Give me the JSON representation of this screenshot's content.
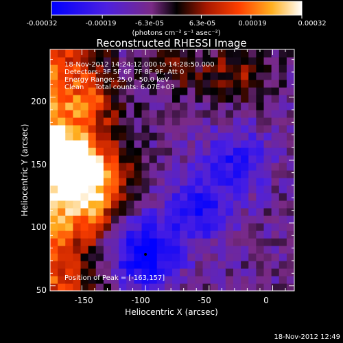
{
  "colorbar": {
    "tick_labels": [
      "-0.00032",
      "-0.00019",
      "-6.3e-05",
      "6.3e-05",
      "0.00019",
      "0.00032"
    ],
    "tick_values": [
      -0.00032,
      -0.00019,
      -6.3e-05,
      6.3e-05,
      0.00019,
      0.00032
    ],
    "range": [
      -0.00032,
      0.00032
    ],
    "unit_label": "(photons cm⁻² s⁻¹ asec⁻²)",
    "colors": [
      "#0000ff",
      "#5a1fd6",
      "#8a2a7a",
      "#000000",
      "#9c1800",
      "#ff3000",
      "#ff9000",
      "#ffe060",
      "#ffffff"
    ]
  },
  "chart_data": {
    "type": "heatmap",
    "title": "Reconstructed RHESSI Image",
    "xlabel": "Heliocentric X (arcsec)",
    "ylabel": "Heliocentric Y (arcsec)",
    "xlim": [
      -175,
      17
    ],
    "ylim": [
      46,
      238
    ],
    "xticks": [
      -150,
      -100,
      -50,
      0
    ],
    "yticks": [
      50,
      100,
      150,
      200
    ],
    "info_lines": [
      "18-Nov-2012 14:24:12.000 to 14:28:50.000",
      "Detectors: 3F 5F 6F 7F 8F 9F, Att 0",
      "Energy Range: 25.0 - 50.0 keV",
      "Clean     Total counts: 6.07E+03"
    ],
    "peak_label": "Position of Peak = [-163,157]",
    "peak_position": [
      -163,
      157
    ],
    "bright_regions": [
      {
        "x": -165,
        "y": 155,
        "intensity": 0.00032
      },
      {
        "x": -135,
        "y": 138,
        "intensity": 0.00028
      },
      {
        "x": -150,
        "y": 115,
        "intensity": 0.00022
      },
      {
        "x": -140,
        "y": 200,
        "intensity": 0.00018
      },
      {
        "x": -25,
        "y": 222,
        "intensity": 0.00017
      },
      {
        "x": -75,
        "y": 225,
        "intensity": 0.00012
      }
    ],
    "dark_regions": [
      {
        "x": -100,
        "y": 75,
        "intensity": -0.00032
      },
      {
        "x": -60,
        "y": 110,
        "intensity": -0.00022
      },
      {
        "x": -30,
        "y": 150,
        "intensity": -0.0002
      }
    ]
  },
  "footer_timestamp": "18-Nov-2012 12:49"
}
